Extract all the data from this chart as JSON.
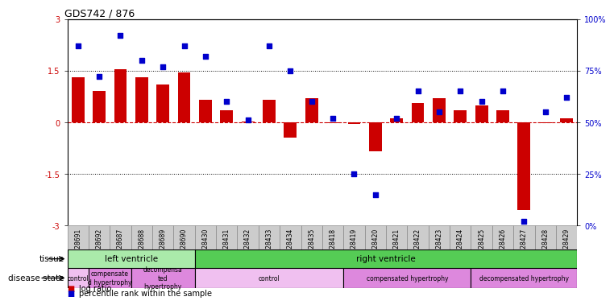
{
  "title": "GDS742 / 876",
  "samples": [
    "GSM28691",
    "GSM28692",
    "GSM28687",
    "GSM28688",
    "GSM28689",
    "GSM28690",
    "GSM28430",
    "GSM28431",
    "GSM28432",
    "GSM28433",
    "GSM28434",
    "GSM28435",
    "GSM28418",
    "GSM28419",
    "GSM28420",
    "GSM28421",
    "GSM28422",
    "GSM28423",
    "GSM28424",
    "GSM28425",
    "GSM28426",
    "GSM28427",
    "GSM28428",
    "GSM28429"
  ],
  "log_ratio": [
    1.3,
    0.9,
    1.55,
    1.3,
    1.1,
    1.45,
    0.65,
    0.35,
    0.02,
    0.65,
    -0.45,
    0.7,
    -0.02,
    -0.05,
    -0.85,
    0.12,
    0.55,
    0.7,
    0.35,
    0.5,
    0.35,
    -2.55,
    -0.02,
    0.12
  ],
  "percentile": [
    87,
    72,
    92,
    80,
    77,
    87,
    82,
    60,
    51,
    87,
    75,
    60,
    52,
    25,
    15,
    52,
    65,
    55,
    65,
    60,
    65,
    2,
    55,
    62
  ],
  "ylim_left": [
    -3,
    3
  ],
  "ylim_right": [
    0,
    100
  ],
  "yticks_left": [
    -3,
    -1.5,
    0,
    1.5,
    3
  ],
  "yticks_right": [
    0,
    25,
    50,
    75,
    100
  ],
  "hlines_dotted": [
    -1.5,
    1.5
  ],
  "bar_color": "#cc0000",
  "dot_color": "#0000cc",
  "zero_line_color": "#cc0000",
  "tissue_groups": [
    {
      "label": "left ventricle",
      "start": 0,
      "end": 6,
      "color": "#aaeaaa"
    },
    {
      "label": "right ventricle",
      "start": 6,
      "end": 24,
      "color": "#55cc55"
    }
  ],
  "disease_groups": [
    {
      "label": "control",
      "start": 0,
      "end": 1,
      "color": "#f0c0f0"
    },
    {
      "label": "compensate\nd hypertrophy",
      "start": 1,
      "end": 3,
      "color": "#dd88dd"
    },
    {
      "label": "decompensa\nted\nhypertrophy",
      "start": 3,
      "end": 6,
      "color": "#dd88dd"
    },
    {
      "label": "control",
      "start": 6,
      "end": 13,
      "color": "#f0c0f0"
    },
    {
      "label": "compensated hypertrophy",
      "start": 13,
      "end": 19,
      "color": "#dd88dd"
    },
    {
      "label": "decompensated hypertrophy",
      "start": 19,
      "end": 24,
      "color": "#dd88dd"
    }
  ],
  "left_labels": [
    "tissue",
    "disease state"
  ],
  "legend_items": [
    {
      "label": "log ratio",
      "color": "#cc0000"
    },
    {
      "label": "percentile rank within the sample",
      "color": "#0000cc"
    }
  ]
}
